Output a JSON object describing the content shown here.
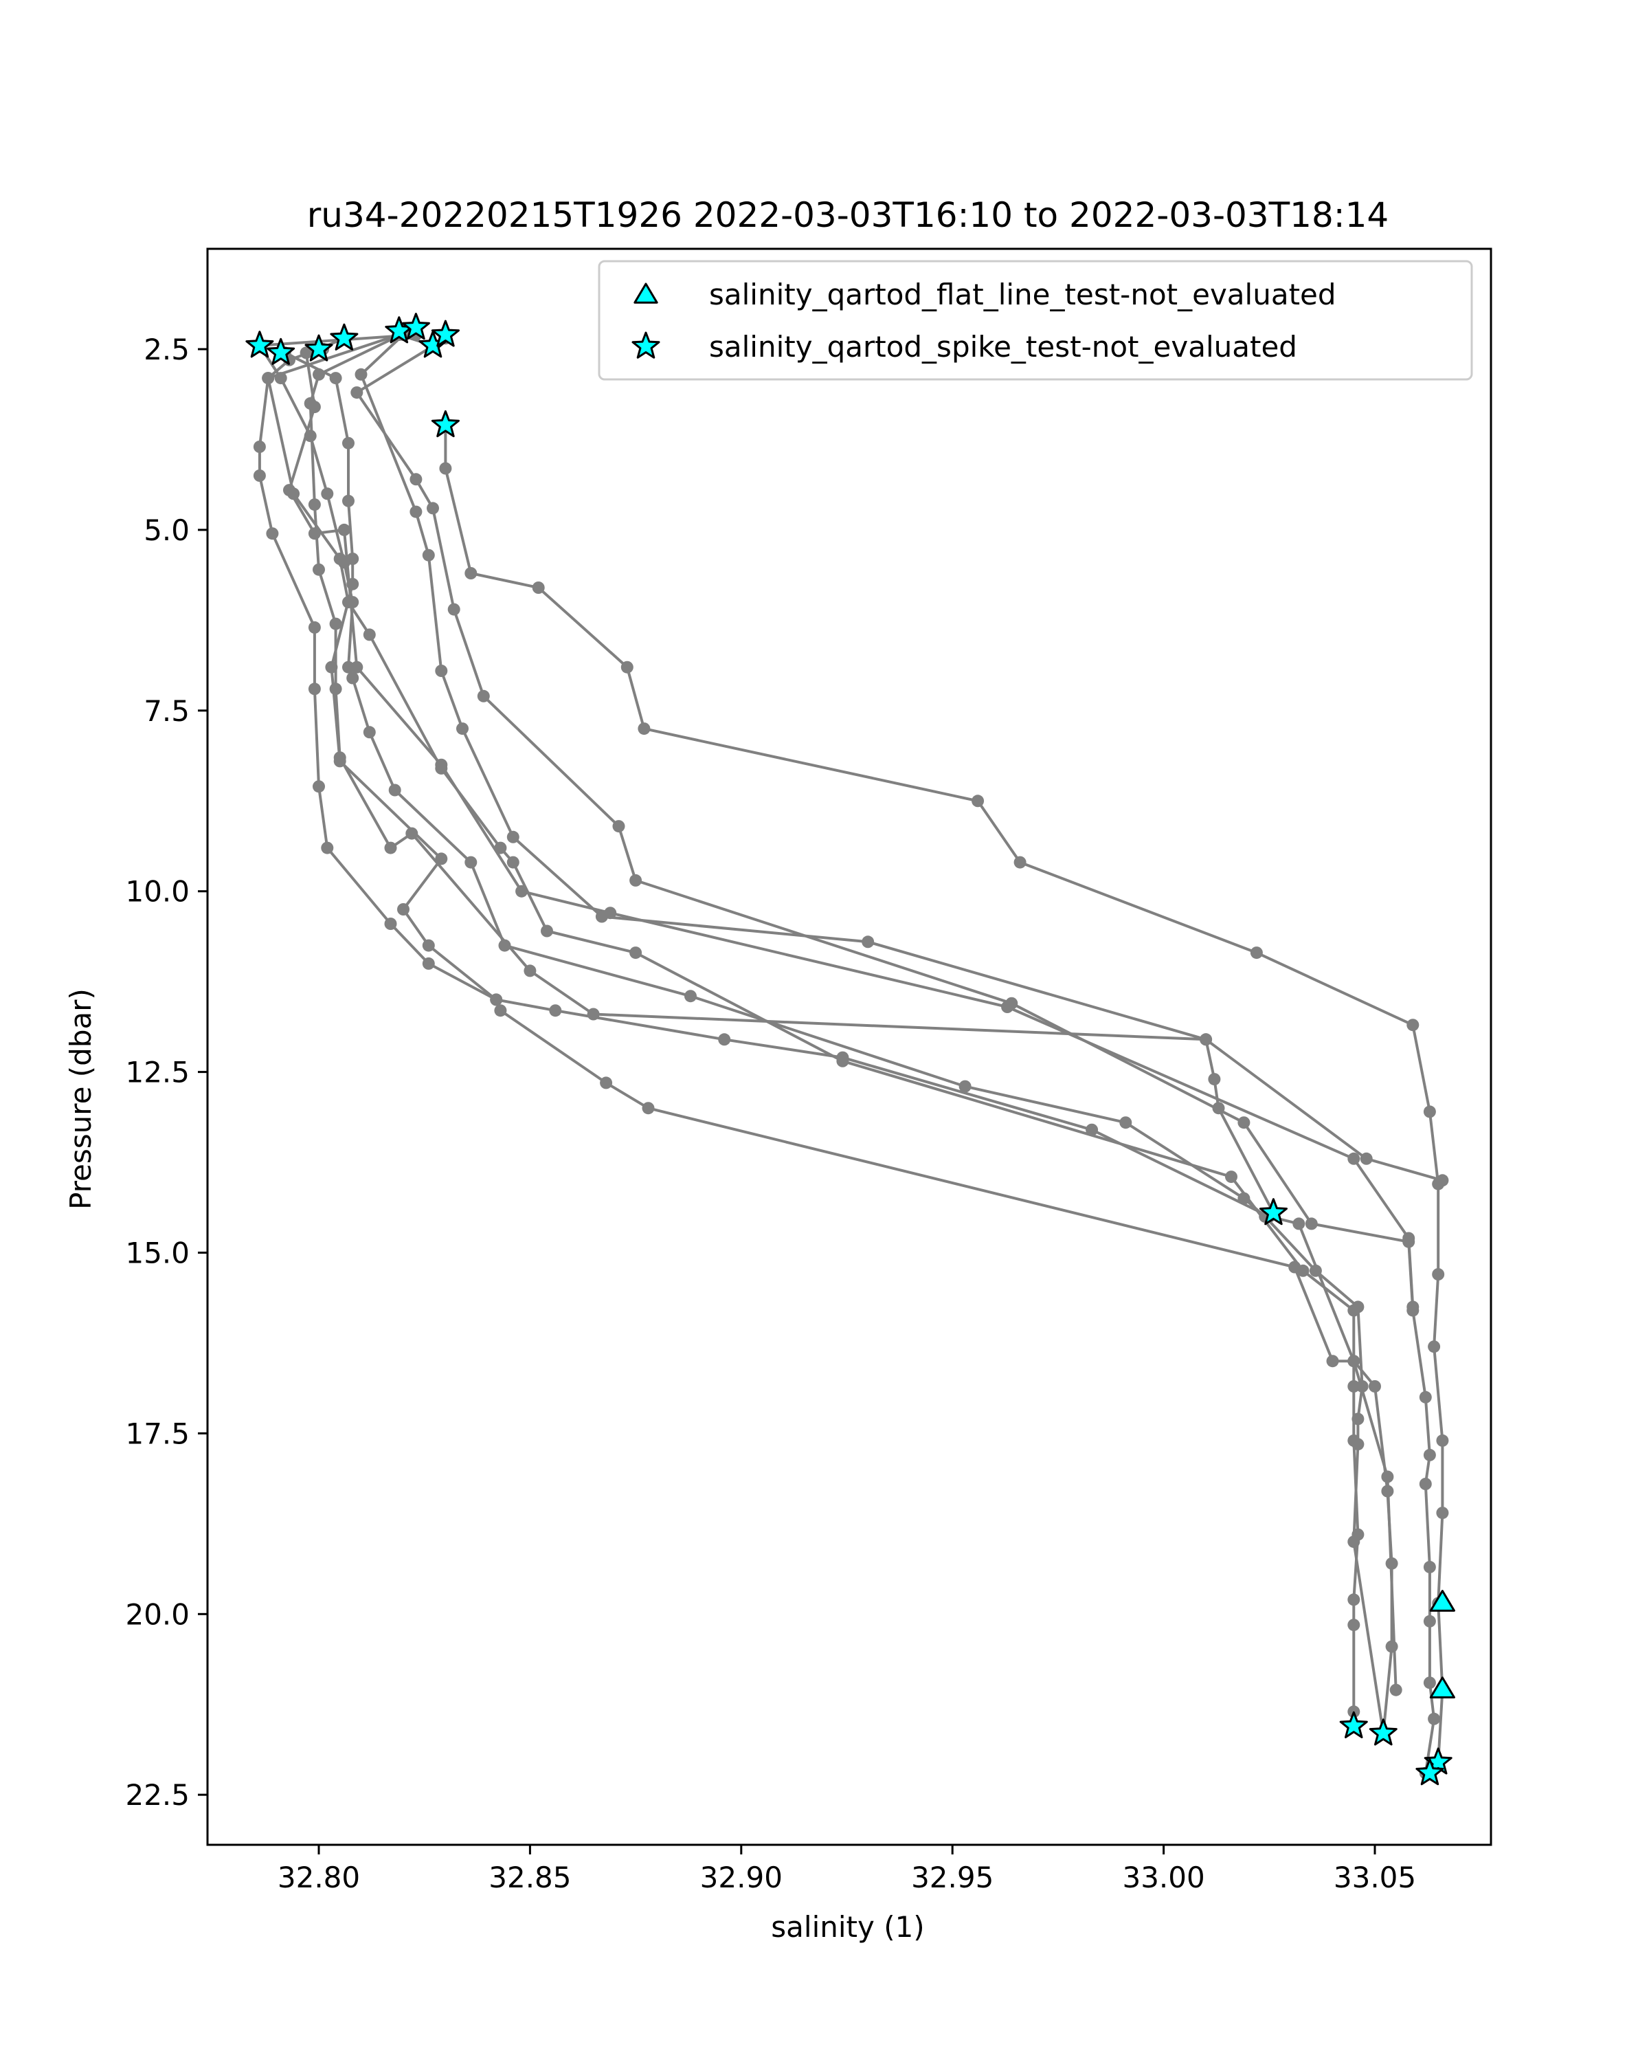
{
  "chart_data": {
    "type": "scatter",
    "title": "ru34-20220215T1926 2022-03-03T16:10 to 2022-03-03T18:14",
    "xlabel": "salinity (1)",
    "ylabel": "Pressure (dbar)",
    "xlim": [
      32.775,
      33.081
    ],
    "ylim": [
      23.2,
      1.05
    ],
    "y_inverted": true,
    "grid": false,
    "legend_position": "top-right",
    "x_ticks": [
      32.8,
      32.85,
      32.9,
      32.95,
      33.0,
      33.05
    ],
    "x_tick_labels": [
      "32.80",
      "32.85",
      "32.90",
      "32.95",
      "33.00",
      "33.05"
    ],
    "y_ticks": [
      2.5,
      5.0,
      7.5,
      10.0,
      12.5,
      15.0,
      17.5,
      20.0,
      22.5
    ],
    "y_tick_labels": [
      "2.5",
      "5.0",
      "7.5",
      "10.0",
      "12.5",
      "15.0",
      "17.5",
      "20.0",
      "22.5"
    ],
    "colors": {
      "profile_line": "#808080",
      "marker_fill": "#00ffff",
      "marker_edge": "#000000"
    },
    "profiles": [
      [
        [
          32.83,
          3.55
        ],
        [
          32.83,
          4.15
        ],
        [
          32.836,
          5.6
        ],
        [
          32.852,
          5.8
        ],
        [
          32.873,
          6.9
        ],
        [
          32.877,
          7.75
        ],
        [
          32.956,
          8.75
        ],
        [
          32.966,
          9.6
        ],
        [
          33.022,
          10.85
        ],
        [
          33.059,
          11.85
        ],
        [
          33.063,
          13.05
        ],
        [
          33.065,
          14.05
        ],
        [
          33.065,
          15.3
        ],
        [
          33.064,
          16.3
        ],
        [
          33.066,
          17.6
        ],
        [
          33.066,
          18.6
        ],
        [
          33.065,
          19.85
        ],
        [
          33.066,
          21.05
        ],
        [
          33.065,
          22.05
        ]
      ]
    ],
    "profile_lines": [
      [
        [
          32.83,
          2.35
        ],
        [
          32.809,
          3.1
        ],
        [
          32.823,
          4.3
        ],
        [
          32.827,
          4.7
        ],
        [
          32.832,
          6.1
        ],
        [
          32.839,
          7.3
        ],
        [
          32.871,
          9.1
        ],
        [
          32.875,
          9.85
        ],
        [
          32.964,
          11.55
        ],
        [
          33.019,
          13.2
        ],
        [
          33.035,
          14.6
        ],
        [
          33.058,
          14.85
        ],
        [
          33.059,
          15.8
        ],
        [
          33.062,
          17.0
        ],
        [
          33.063,
          17.8
        ],
        [
          33.062,
          18.2
        ],
        [
          33.063,
          19.35
        ],
        [
          33.063,
          20.1
        ],
        [
          33.063,
          20.95
        ],
        [
          33.064,
          21.45
        ],
        [
          33.062,
          22.2
        ]
      ],
      [
        [
          32.827,
          2.45
        ],
        [
          32.819,
          2.3
        ],
        [
          32.788,
          2.9
        ],
        [
          32.794,
          4.5
        ],
        [
          32.805,
          5.4
        ],
        [
          32.807,
          6.0
        ],
        [
          32.812,
          6.45
        ],
        [
          32.829,
          8.3
        ],
        [
          32.843,
          9.4
        ],
        [
          32.846,
          9.6
        ],
        [
          32.854,
          10.55
        ],
        [
          32.875,
          10.85
        ],
        [
          32.924,
          12.35
        ],
        [
          33.016,
          13.95
        ],
        [
          33.033,
          15.25
        ],
        [
          33.045,
          15.8
        ],
        [
          33.045,
          16.85
        ],
        [
          33.045,
          17.6
        ],
        [
          33.046,
          18.9
        ],
        [
          33.045,
          19.8
        ],
        [
          33.045,
          20.15
        ],
        [
          33.045,
          21.35
        ],
        [
          33.045,
          21.55
        ]
      ],
      [
        [
          32.823,
          2.3
        ],
        [
          32.786,
          2.45
        ],
        [
          32.791,
          2.9
        ],
        [
          32.798,
          3.7
        ],
        [
          32.802,
          4.5
        ],
        [
          32.806,
          5.45
        ],
        [
          32.808,
          6.0
        ],
        [
          32.807,
          6.9
        ],
        [
          32.808,
          7.05
        ],
        [
          32.812,
          7.8
        ],
        [
          32.818,
          8.6
        ],
        [
          32.836,
          9.6
        ],
        [
          32.844,
          10.75
        ],
        [
          32.888,
          11.45
        ],
        [
          32.953,
          12.7
        ],
        [
          32.991,
          13.2
        ],
        [
          33.019,
          14.25
        ],
        [
          33.024,
          14.5
        ],
        [
          33.036,
          15.25
        ],
        [
          33.046,
          15.75
        ],
        [
          33.047,
          16.85
        ],
        [
          33.046,
          17.3
        ],
        [
          33.046,
          17.65
        ],
        [
          33.045,
          19.0
        ],
        [
          33.052,
          21.65
        ]
      ],
      [
        [
          32.806,
          2.35
        ],
        [
          32.8,
          2.5
        ],
        [
          32.793,
          2.65
        ],
        [
          32.788,
          2.9
        ],
        [
          32.786,
          3.85
        ],
        [
          32.786,
          4.25
        ],
        [
          32.789,
          5.05
        ],
        [
          32.799,
          6.35
        ],
        [
          32.799,
          7.2
        ],
        [
          32.8,
          8.55
        ],
        [
          32.802,
          9.4
        ],
        [
          32.817,
          10.45
        ],
        [
          32.826,
          11.0
        ],
        [
          32.842,
          11.5
        ],
        [
          32.843,
          11.65
        ],
        [
          32.868,
          12.65
        ],
        [
          32.878,
          13.0
        ],
        [
          33.031,
          15.2
        ],
        [
          33.04,
          16.5
        ],
        [
          33.045,
          16.5
        ],
        [
          33.053,
          18.1
        ],
        [
          33.055,
          21.05
        ]
      ],
      [
        [
          32.792,
          2.55
        ],
        [
          32.804,
          2.9
        ],
        [
          32.807,
          3.8
        ],
        [
          32.807,
          4.6
        ],
        [
          32.808,
          5.4
        ],
        [
          32.808,
          5.75
        ],
        [
          32.803,
          6.9
        ],
        [
          32.805,
          8.2
        ],
        [
          32.829,
          9.55
        ],
        [
          32.82,
          10.25
        ],
        [
          32.826,
          10.75
        ],
        [
          32.842,
          11.5
        ],
        [
          32.856,
          11.65
        ],
        [
          32.896,
          12.05
        ],
        [
          32.924,
          12.3
        ],
        [
          32.983,
          13.3
        ],
        [
          33.025,
          14.5
        ],
        [
          33.032,
          14.6
        ],
        [
          33.045,
          16.5
        ],
        [
          33.05,
          16.85
        ],
        [
          33.053,
          18.3
        ],
        [
          33.054,
          19.3
        ],
        [
          33.054,
          20.45
        ],
        [
          33.052,
          21.65
        ]
      ],
      [
        [
          32.823,
          2.2
        ],
        [
          32.8,
          2.85
        ],
        [
          32.798,
          3.25
        ],
        [
          32.799,
          4.65
        ],
        [
          32.8,
          5.55
        ],
        [
          32.804,
          6.3
        ],
        [
          32.804,
          7.2
        ],
        [
          32.805,
          8.15
        ],
        [
          32.817,
          9.4
        ],
        [
          32.822,
          9.2
        ],
        [
          32.85,
          11.1
        ],
        [
          32.865,
          11.7
        ],
        [
          33.01,
          12.05
        ],
        [
          33.012,
          12.6
        ],
        [
          33.013,
          13.0
        ],
        [
          33.026,
          14.45
        ]
      ],
      [
        [
          32.801,
          2.5
        ],
        [
          32.797,
          2.55
        ],
        [
          32.799,
          3.3
        ],
        [
          32.793,
          4.45
        ],
        [
          32.799,
          5.05
        ],
        [
          32.806,
          5.0
        ],
        [
          32.809,
          6.9
        ],
        [
          32.829,
          8.25
        ],
        [
          32.848,
          10.0
        ],
        [
          32.869,
          10.3
        ],
        [
          32.963,
          11.6
        ],
        [
          33.045,
          13.7
        ],
        [
          33.058,
          14.8
        ],
        [
          33.059,
          15.75
        ]
      ],
      [
        [
          32.82,
          2.3
        ],
        [
          32.81,
          2.85
        ],
        [
          32.823,
          4.75
        ],
        [
          32.826,
          5.35
        ],
        [
          32.829,
          6.95
        ],
        [
          32.834,
          7.75
        ],
        [
          32.846,
          9.25
        ],
        [
          32.867,
          10.35
        ],
        [
          32.93,
          10.7
        ],
        [
          33.01,
          12.05
        ],
        [
          33.048,
          13.7
        ],
        [
          33.066,
          14.0
        ]
      ]
    ],
    "series": [
      {
        "name": "salinity_qartod_flat_line_test-not_evaluated",
        "marker": "triangle",
        "points": [
          [
            33.066,
            19.85
          ],
          [
            33.066,
            21.05
          ]
        ]
      },
      {
        "name": "salinity_qartod_spike_test-not_evaluated",
        "marker": "star",
        "points": [
          [
            32.786,
            2.45
          ],
          [
            32.791,
            2.55
          ],
          [
            32.8,
            2.5
          ],
          [
            32.806,
            2.35
          ],
          [
            32.819,
            2.25
          ],
          [
            32.823,
            2.2
          ],
          [
            32.827,
            2.45
          ],
          [
            32.83,
            2.3
          ],
          [
            32.83,
            3.55
          ],
          [
            33.026,
            14.45
          ],
          [
            33.045,
            21.55
          ],
          [
            33.052,
            21.65
          ],
          [
            33.065,
            22.05
          ],
          [
            33.063,
            22.2
          ]
        ]
      }
    ]
  }
}
